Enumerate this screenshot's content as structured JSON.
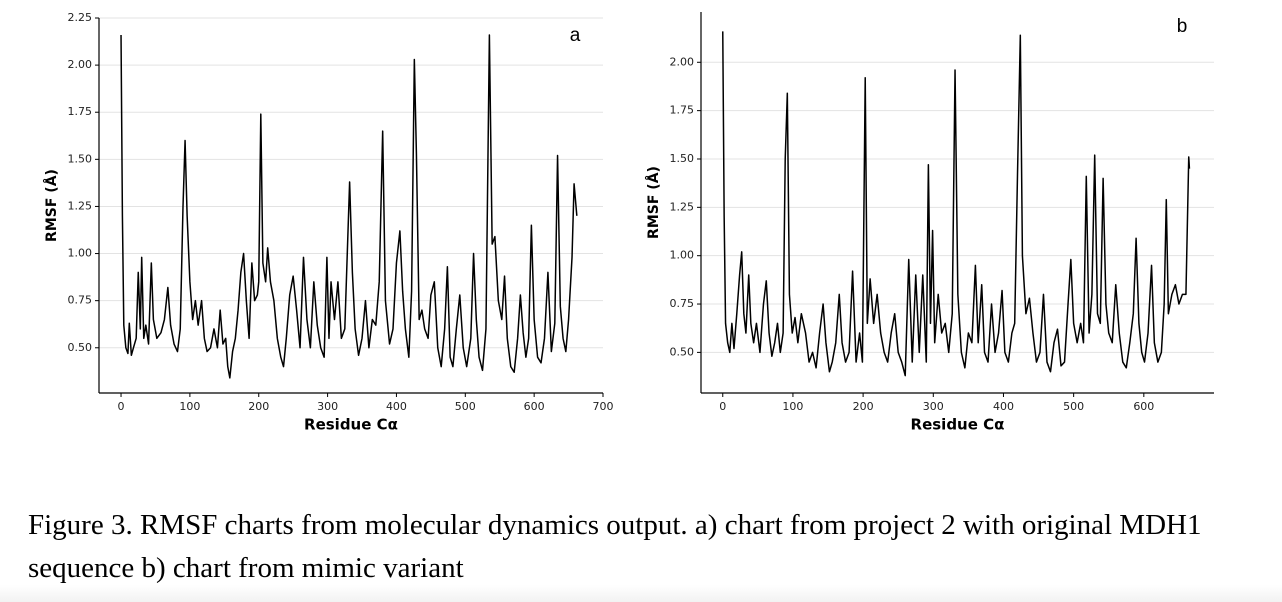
{
  "chart_data": [
    {
      "type": "line",
      "annotation": "a",
      "xlabel": "Residue Cα",
      "ylabel": "RMSF (Å)",
      "color": "#000000",
      "grid": true,
      "xlim": [
        -32,
        700
      ],
      "ylim": [
        0.26,
        2.25
      ],
      "xticks": [
        0,
        100,
        200,
        300,
        400,
        500,
        600,
        700
      ],
      "yticks": [
        {
          "value": 0.5,
          "label": "0.50"
        },
        0.75,
        {
          "value": 1,
          "label": "1.00"
        },
        1.25,
        {
          "value": 1.5,
          "label": "1.50"
        },
        1.75,
        {
          "value": 2,
          "label": "2.00"
        },
        2.25
      ],
      "x": [
        0,
        2,
        4,
        7,
        10,
        12,
        15,
        18,
        22,
        25,
        28,
        30,
        33,
        36,
        40,
        44,
        47,
        52,
        58,
        63,
        68,
        72,
        77,
        82,
        86,
        90,
        93,
        96,
        100,
        104,
        108,
        112,
        117,
        121,
        125,
        130,
        135,
        140,
        144,
        148,
        152,
        155,
        158,
        162,
        166,
        170,
        174,
        178,
        182,
        186,
        190,
        194,
        198,
        200,
        203,
        206,
        210,
        213,
        217,
        222,
        227,
        232,
        236,
        240,
        245,
        250,
        255,
        260,
        265,
        270,
        275,
        280,
        285,
        290,
        295,
        299,
        302,
        305,
        310,
        315,
        320,
        325,
        332,
        336,
        340,
        345,
        350,
        355,
        360,
        365,
        370,
        375,
        380,
        384,
        390,
        395,
        400,
        405,
        409,
        413,
        418,
        422,
        426,
        429,
        433,
        437,
        441,
        446,
        450,
        455,
        460,
        465,
        470,
        474,
        478,
        482,
        487,
        492,
        497,
        502,
        508,
        512,
        516,
        520,
        525,
        530,
        535,
        539,
        543,
        548,
        553,
        557,
        561,
        566,
        571,
        576,
        580,
        584,
        588,
        592,
        596,
        600,
        605,
        610,
        615,
        620,
        625,
        630,
        634,
        638,
        642,
        646,
        650,
        655,
        658,
        662
      ],
      "values": [
        2.16,
        1.2,
        0.62,
        0.5,
        0.47,
        0.63,
        0.46,
        0.5,
        0.55,
        0.9,
        0.6,
        0.98,
        0.55,
        0.62,
        0.52,
        0.95,
        0.65,
        0.55,
        0.58,
        0.65,
        0.82,
        0.62,
        0.52,
        0.48,
        0.6,
        1.25,
        1.6,
        1.2,
        0.85,
        0.65,
        0.75,
        0.62,
        0.75,
        0.55,
        0.48,
        0.5,
        0.6,
        0.5,
        0.7,
        0.52,
        0.55,
        0.4,
        0.34,
        0.48,
        0.55,
        0.7,
        0.9,
        1.0,
        0.75,
        0.55,
        0.95,
        0.75,
        0.78,
        0.85,
        1.74,
        0.95,
        0.85,
        1.03,
        0.85,
        0.75,
        0.55,
        0.45,
        0.4,
        0.55,
        0.78,
        0.88,
        0.7,
        0.5,
        0.98,
        0.65,
        0.5,
        0.85,
        0.62,
        0.5,
        0.45,
        0.98,
        0.55,
        0.85,
        0.65,
        0.85,
        0.55,
        0.6,
        1.38,
        0.9,
        0.6,
        0.46,
        0.55,
        0.75,
        0.5,
        0.65,
        0.62,
        0.85,
        1.65,
        0.75,
        0.52,
        0.6,
        0.95,
        1.12,
        0.8,
        0.6,
        0.45,
        0.8,
        2.03,
        1.53,
        0.65,
        0.7,
        0.6,
        0.55,
        0.78,
        0.85,
        0.5,
        0.4,
        0.6,
        0.93,
        0.45,
        0.4,
        0.6,
        0.78,
        0.5,
        0.4,
        0.55,
        1.0,
        0.65,
        0.45,
        0.38,
        0.6,
        2.16,
        1.05,
        1.09,
        0.75,
        0.65,
        0.88,
        0.55,
        0.4,
        0.37,
        0.55,
        0.78,
        0.58,
        0.45,
        0.55,
        1.15,
        0.65,
        0.45,
        0.42,
        0.55,
        0.9,
        0.48,
        0.63,
        1.52,
        0.72,
        0.55,
        0.48,
        0.65,
        0.98,
        1.37,
        1.2
      ]
    },
    {
      "type": "line",
      "annotation": "b",
      "xlabel": "Residue Cα",
      "ylabel": "RMSF (Å)",
      "color": "#000000",
      "grid": true,
      "xlim": [
        -31,
        700
      ],
      "ylim": [
        0.29,
        2.26
      ],
      "xticks": [
        0,
        100,
        200,
        300,
        400,
        500,
        600
      ],
      "yticks": [
        {
          "value": 0.5,
          "label": "0.50"
        },
        0.75,
        {
          "value": 1,
          "label": "1.00"
        },
        1.25,
        {
          "value": 1.5,
          "label": "1.50"
        },
        1.75,
        {
          "value": 2,
          "label": "2.00"
        }
      ],
      "x": [
        0,
        2,
        4,
        7,
        10,
        13,
        16,
        20,
        24,
        27,
        30,
        33,
        37,
        40,
        44,
        48,
        53,
        58,
        62,
        66,
        70,
        74,
        78,
        82,
        86,
        89,
        92,
        95,
        99,
        103,
        107,
        112,
        118,
        123,
        128,
        133,
        138,
        143,
        147,
        152,
        156,
        161,
        166,
        170,
        175,
        180,
        185,
        190,
        195,
        199,
        203,
        206,
        210,
        215,
        220,
        225,
        230,
        235,
        240,
        245,
        250,
        255,
        260,
        265,
        270,
        275,
        280,
        285,
        290,
        293,
        296,
        299,
        302,
        307,
        312,
        317,
        322,
        327,
        331,
        335,
        340,
        345,
        350,
        355,
        360,
        364,
        369,
        373,
        378,
        383,
        388,
        393,
        398,
        402,
        407,
        412,
        416,
        420,
        424,
        427,
        432,
        437,
        442,
        447,
        452,
        457,
        462,
        467,
        472,
        477,
        482,
        487,
        492,
        496,
        500,
        505,
        510,
        514,
        518,
        522,
        526,
        530,
        534,
        538,
        542,
        546,
        550,
        555,
        560,
        565,
        570,
        575,
        580,
        585,
        589,
        593,
        597,
        601,
        606,
        611,
        615,
        620,
        625,
        629,
        632,
        635,
        640,
        645,
        650,
        655,
        660,
        664,
        665
      ],
      "values": [
        2.16,
        1.2,
        0.65,
        0.55,
        0.5,
        0.65,
        0.52,
        0.7,
        0.9,
        1.02,
        0.7,
        0.6,
        0.9,
        0.65,
        0.55,
        0.65,
        0.5,
        0.75,
        0.87,
        0.6,
        0.48,
        0.55,
        0.65,
        0.5,
        0.6,
        1.5,
        1.84,
        0.8,
        0.6,
        0.68,
        0.55,
        0.7,
        0.6,
        0.45,
        0.5,
        0.42,
        0.6,
        0.75,
        0.55,
        0.4,
        0.45,
        0.55,
        0.8,
        0.55,
        0.45,
        0.5,
        0.92,
        0.45,
        0.6,
        0.45,
        1.92,
        0.65,
        0.88,
        0.65,
        0.8,
        0.6,
        0.5,
        0.45,
        0.6,
        0.7,
        0.5,
        0.45,
        0.38,
        0.98,
        0.45,
        0.9,
        0.5,
        0.9,
        0.45,
        1.47,
        0.65,
        1.13,
        0.55,
        0.8,
        0.6,
        0.65,
        0.5,
        0.7,
        1.96,
        0.8,
        0.5,
        0.42,
        0.6,
        0.55,
        0.95,
        0.55,
        0.85,
        0.5,
        0.45,
        0.75,
        0.5,
        0.6,
        0.82,
        0.5,
        0.45,
        0.6,
        0.65,
        1.42,
        2.14,
        1.0,
        0.7,
        0.78,
        0.6,
        0.45,
        0.5,
        0.8,
        0.45,
        0.4,
        0.55,
        0.62,
        0.43,
        0.45,
        0.75,
        0.98,
        0.65,
        0.55,
        0.65,
        0.55,
        1.41,
        0.6,
        0.8,
        1.52,
        0.7,
        0.65,
        1.4,
        0.75,
        0.6,
        0.55,
        0.85,
        0.6,
        0.45,
        0.42,
        0.55,
        0.7,
        1.09,
        0.65,
        0.5,
        0.45,
        0.6,
        0.95,
        0.55,
        0.45,
        0.5,
        0.75,
        1.29,
        0.7,
        0.8,
        0.85,
        0.75,
        0.8,
        0.8,
        1.51,
        1.45
      ]
    }
  ],
  "caption": "Figure 3. RMSF charts from molecular dynamics output. a) chart from project 2 with original MDH1 sequence b) chart from mimic variant"
}
